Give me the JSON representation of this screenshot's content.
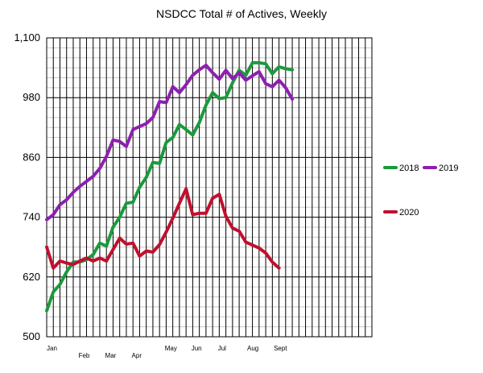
{
  "chart_data": {
    "type": "line",
    "title": "NSDCC Total # of Actives, Weekly",
    "xlabel": "",
    "ylabel": "",
    "ylim": [
      500,
      1100
    ],
    "y_ticks": [
      "500",
      "620",
      "740",
      "860",
      "980",
      "1,100"
    ],
    "y_tick_values": [
      500,
      620,
      740,
      860,
      980,
      1100
    ],
    "x_month_labels": [
      "Jan",
      "Feb",
      "Mar",
      "Apr",
      "May",
      "Jun",
      "Jul",
      "Aug",
      "Sept"
    ],
    "x_month_weeks": [
      0,
      4.8,
      8.8,
      12.8,
      17.8,
      21.8,
      25.8,
      30.2,
      34.2
    ],
    "x_month_row": [
      0,
      1,
      1,
      1,
      0,
      0,
      0,
      0,
      0
    ],
    "weeks_total": 49,
    "grid": true,
    "legend_position": "right",
    "series": [
      {
        "name": "2018",
        "color": "#1a9a3c",
        "values": [
          552,
          590,
          605,
          630,
          650,
          650,
          655,
          665,
          688,
          682,
          720,
          740,
          768,
          770,
          800,
          820,
          850,
          848,
          890,
          900,
          926,
          916,
          905,
          930,
          965,
          990,
          978,
          980,
          1010,
          1035,
          1025,
          1050,
          1050,
          1048,
          1028,
          1042,
          1038,
          1036
        ]
      },
      {
        "name": "2019",
        "color": "#8e1fb0",
        "values": [
          735,
          745,
          765,
          775,
          790,
          802,
          812,
          822,
          838,
          862,
          895,
          892,
          882,
          916,
          922,
          928,
          940,
          972,
          970,
          1002,
          990,
          1006,
          1025,
          1036,
          1045,
          1030,
          1017,
          1035,
          1018,
          1030,
          1015,
          1024,
          1032,
          1008,
          1002,
          1015,
          1000,
          977
        ]
      },
      {
        "name": "2020",
        "color": "#c0102e",
        "values": [
          680,
          638,
          652,
          648,
          645,
          652,
          658,
          652,
          658,
          652,
          675,
          698,
          686,
          688,
          662,
          672,
          670,
          685,
          710,
          738,
          768,
          797,
          745,
          748,
          748,
          778,
          786,
          742,
          718,
          712,
          690,
          684,
          678,
          668,
          650,
          638
        ]
      }
    ]
  }
}
